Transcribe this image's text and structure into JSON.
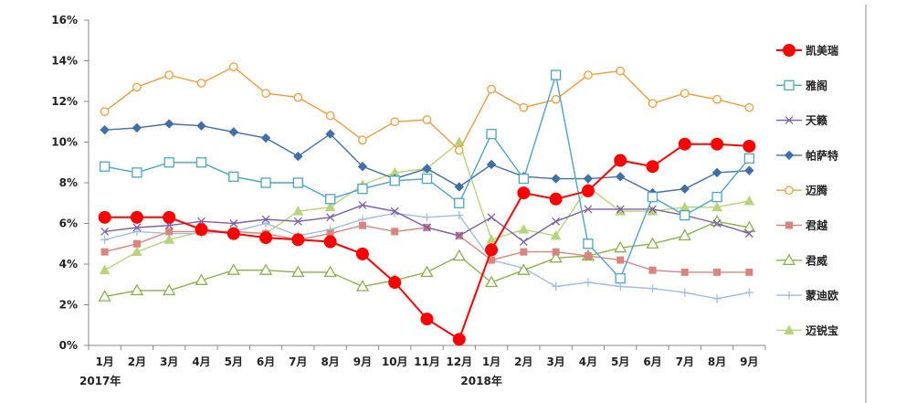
{
  "chart_data": {
    "type": "line",
    "title": "",
    "xlabel": "",
    "ylabel": "",
    "ylim": [
      0,
      16
    ],
    "yticks": [
      "0%",
      "2%",
      "4%",
      "6%",
      "8%",
      "10%",
      "12%",
      "14%",
      "16%"
    ],
    "categories": [
      "1月",
      "2月",
      "3月",
      "4月",
      "5月",
      "6月",
      "7月",
      "8月",
      "9月",
      "10月",
      "11月",
      "12月",
      "1月",
      "2月",
      "3月",
      "4月",
      "5月",
      "6月",
      "7月",
      "8月",
      "9月"
    ],
    "year_labels": [
      {
        "label": "2017年",
        "start_index": 0
      },
      {
        "label": "2018年",
        "start_index": 12
      }
    ],
    "grid": false,
    "legend": "right",
    "series": [
      {
        "name": "凯美瑞",
        "color": "#ff0000",
        "marker": "circle-filled",
        "values": [
          6.3,
          6.3,
          6.3,
          5.7,
          5.5,
          5.3,
          5.2,
          5.1,
          4.5,
          3.1,
          1.3,
          0.3,
          4.7,
          7.5,
          7.2,
          7.6,
          9.1,
          8.8,
          9.9,
          9.9,
          9.8
        ]
      },
      {
        "name": "雅阁",
        "color": "#4aa5c6",
        "marker": "square-open",
        "values": [
          8.8,
          8.5,
          9.0,
          9.0,
          8.3,
          8.0,
          8.0,
          7.2,
          7.7,
          8.1,
          8.2,
          7.0,
          10.4,
          8.2,
          13.3,
          5.0,
          3.3,
          7.3,
          6.4,
          7.3,
          9.2
        ]
      },
      {
        "name": "天籁",
        "color": "#7b5ea7",
        "marker": "x",
        "values": [
          5.6,
          5.8,
          5.9,
          6.1,
          6.0,
          6.2,
          6.1,
          6.3,
          6.9,
          6.6,
          5.8,
          5.4,
          6.3,
          5.1,
          6.1,
          6.7,
          6.7,
          6.7,
          6.4,
          6.0,
          5.5
        ]
      },
      {
        "name": "帕萨特",
        "color": "#3f6fa8",
        "marker": "diamond",
        "values": [
          10.6,
          10.7,
          10.9,
          10.8,
          10.5,
          10.2,
          9.3,
          10.4,
          8.8,
          8.2,
          8.7,
          7.8,
          8.9,
          8.3,
          8.2,
          8.2,
          8.3,
          7.5,
          7.7,
          8.5,
          8.6
        ]
      },
      {
        "name": "迈腾",
        "color": "#f09c3c",
        "marker": "circle-open",
        "values": [
          11.5,
          12.7,
          13.3,
          12.9,
          13.7,
          12.4,
          12.2,
          11.3,
          10.1,
          11.0,
          11.1,
          9.6,
          12.6,
          11.7,
          12.1,
          13.3,
          13.5,
          11.9,
          12.4,
          12.1,
          11.7
        ]
      },
      {
        "name": "君越",
        "color": "#d9857f",
        "marker": "square-filled",
        "values": [
          4.6,
          5.0,
          5.6,
          5.6,
          5.6,
          5.5,
          5.2,
          5.5,
          5.9,
          5.6,
          5.8,
          5.4,
          4.2,
          4.6,
          4.6,
          4.4,
          4.2,
          3.7,
          3.6,
          3.6,
          3.6
        ]
      },
      {
        "name": "君威",
        "color": "#8ab04c",
        "marker": "triangle-open",
        "values": [
          2.4,
          2.7,
          2.7,
          3.2,
          3.7,
          3.7,
          3.6,
          3.6,
          2.9,
          3.2,
          3.6,
          4.4,
          3.1,
          3.7,
          4.3,
          4.4,
          4.8,
          5.0,
          5.4,
          6.1,
          5.8
        ]
      },
      {
        "name": "蒙迪欧",
        "color": "#9fbde0",
        "marker": "plus",
        "values": [
          5.2,
          5.6,
          5.5,
          5.5,
          5.6,
          6.0,
          5.4,
          5.7,
          6.2,
          6.5,
          6.3,
          6.4,
          4.2,
          3.8,
          2.9,
          3.1,
          2.9,
          2.8,
          2.6,
          2.3,
          2.6
        ]
      },
      {
        "name": "迈锐宝",
        "color": "#b9d37a",
        "marker": "triangle-filled",
        "values": [
          3.7,
          4.6,
          5.2,
          5.6,
          5.6,
          5.5,
          6.6,
          6.8,
          7.9,
          8.5,
          8.7,
          10.0,
          5.2,
          5.7,
          5.4,
          7.8,
          6.6,
          6.6,
          6.8,
          6.8,
          7.1
        ]
      }
    ]
  }
}
